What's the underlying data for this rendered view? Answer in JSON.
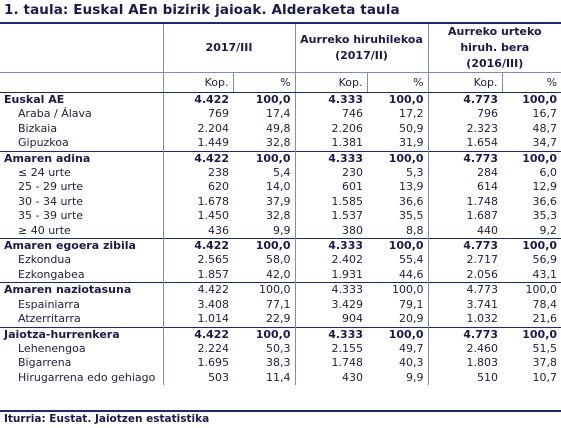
{
  "title": "1. taula: Euskal AEn bizirik jaioak. Alderaketa taula",
  "headers": {
    "col1": "2017/III",
    "col2_line1": "Aurreko hiruhilekoa",
    "col2_line2": "(2017/II)",
    "col3_line1": "Aurreko urteko",
    "col3_line2": "hiruh. bera",
    "col3_line3": "(2016/III)",
    "kop": "Kop.",
    "pct": "%"
  },
  "rows": [
    {
      "type": "group",
      "label": "Euskal AE",
      "v": [
        "4.422",
        "100,0",
        "4.333",
        "100,0",
        "4.773",
        "100,0"
      ]
    },
    {
      "type": "sub",
      "label": "Araba / Álava",
      "v": [
        "769",
        "17,4",
        "746",
        "17,2",
        "796",
        "16,7"
      ]
    },
    {
      "type": "sub",
      "label": "Bizkaia",
      "v": [
        "2.204",
        "49,8",
        "2.206",
        "50,9",
        "2.323",
        "48,7"
      ]
    },
    {
      "type": "sub",
      "label": "Gipuzkoa",
      "v": [
        "1.449",
        "32,8",
        "1.381",
        "31,9",
        "1.654",
        "34,7"
      ]
    },
    {
      "type": "group",
      "label": "Amaren adina",
      "v": [
        "4.422",
        "100,0",
        "4.333",
        "100,0",
        "4.773",
        "100,0"
      ]
    },
    {
      "type": "sub",
      "label": "≤ 24 urte",
      "v": [
        "238",
        "5,4",
        "230",
        "5,3",
        "284",
        "6,0"
      ]
    },
    {
      "type": "sub",
      "label": "25 - 29 urte",
      "v": [
        "620",
        "14,0",
        "601",
        "13,9",
        "614",
        "12,9"
      ]
    },
    {
      "type": "sub",
      "label": "30 - 34 urte",
      "v": [
        "1.678",
        "37,9",
        "1.585",
        "36,6",
        "1.748",
        "36,6"
      ]
    },
    {
      "type": "sub",
      "label": "35 - 39 urte",
      "v": [
        "1.450",
        "32,8",
        "1.537",
        "35,5",
        "1.687",
        "35,3"
      ]
    },
    {
      "type": "sub",
      "label": "≥ 40 urte",
      "v": [
        "436",
        "9,9",
        "380",
        "8,8",
        "440",
        "9,2"
      ]
    },
    {
      "type": "group",
      "label": "Amaren egoera zibila",
      "v": [
        "4.422",
        "100,0",
        "4.333",
        "100,0",
        "4.773",
        "100,0"
      ]
    },
    {
      "type": "sub",
      "label": "Ezkondua",
      "v": [
        "2.565",
        "58,0",
        "2.402",
        "55,4",
        "2.717",
        "56,9"
      ]
    },
    {
      "type": "sub",
      "label": "Ezkongabea",
      "v": [
        "1.857",
        "42,0",
        "1.931",
        "44,6",
        "2.056",
        "43,1"
      ]
    },
    {
      "type": "groupplain",
      "label": "Amaren naziotasuna",
      "v": [
        "4.422",
        "100,0",
        "4.333",
        "100,0",
        "4.773",
        "100,0"
      ]
    },
    {
      "type": "sub",
      "label": "Espainiarra",
      "v": [
        "3.408",
        "77,1",
        "3.429",
        "79,1",
        "3.741",
        "78,4"
      ]
    },
    {
      "type": "sub",
      "label": "Atzerritarra",
      "v": [
        "1.014",
        "22,9",
        "904",
        "20,9",
        "1.032",
        "21,6"
      ]
    },
    {
      "type": "group",
      "label": "Jaiotza-hurrenkera",
      "v": [
        "4.422",
        "100,0",
        "4.333",
        "100,0",
        "4.773",
        "100,0"
      ]
    },
    {
      "type": "sub",
      "label": "Lehenengoa",
      "v": [
        "2.224",
        "50,3",
        "2.155",
        "49,7",
        "2.460",
        "51,5"
      ]
    },
    {
      "type": "sub",
      "label": "Bigarrena",
      "v": [
        "1.695",
        "38,3",
        "1.748",
        "40,3",
        "1.803",
        "37,8"
      ]
    },
    {
      "type": "sub",
      "label": "Hirugarrena edo gehiago",
      "v": [
        "503",
        "11,4",
        "430",
        "9,9",
        "510",
        "10,7"
      ]
    }
  ],
  "source": "Iturria: Eustat. Jaiotzen estatistika"
}
